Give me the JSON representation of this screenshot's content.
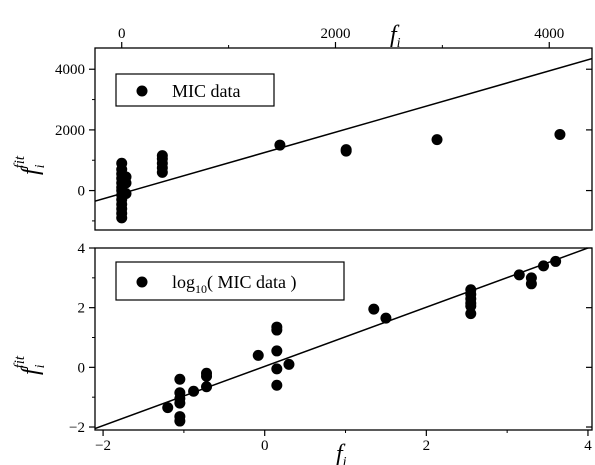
{
  "chart_data": [
    {
      "type": "scatter",
      "panel": "top",
      "xlabel": "f",
      "xlabel_sub": "i",
      "xaxis_position": "top",
      "ylabel": "f",
      "ylabel_sup": "fit",
      "ylabel_sub": "i",
      "xlim": [
        -250,
        4400
      ],
      "ylim": [
        -1300,
        4700
      ],
      "xticks": [
        0,
        2000,
        4000
      ],
      "yticks": [
        0,
        2000,
        4000
      ],
      "legend": {
        "label": "MIC data",
        "placement": "top-left"
      },
      "fit_line": {
        "x": [
          -250,
          4400
        ],
        "y": [
          -350,
          4350
        ]
      },
      "series": [
        {
          "name": "MIC data",
          "points": [
            [
              0,
              -900
            ],
            [
              0,
              -750
            ],
            [
              0,
              -600
            ],
            [
              0,
              -450
            ],
            [
              0,
              -300
            ],
            [
              0,
              -150
            ],
            [
              0,
              0
            ],
            [
              0,
              100
            ],
            [
              0,
              250
            ],
            [
              0,
              400
            ],
            [
              0,
              550
            ],
            [
              0,
              700
            ],
            [
              0,
              900
            ],
            [
              40,
              -100
            ],
            [
              40,
              250
            ],
            [
              40,
              450
            ],
            [
              380,
              600
            ],
            [
              380,
              750
            ],
            [
              380,
              900
            ],
            [
              380,
              1050
            ],
            [
              380,
              1150
            ],
            [
              1480,
              1500
            ],
            [
              2100,
              1300
            ],
            [
              2100,
              1350
            ],
            [
              2950,
              1680
            ],
            [
              4100,
              1850
            ]
          ]
        }
      ]
    },
    {
      "type": "scatter",
      "panel": "bottom",
      "xlabel": "f",
      "xlabel_sub": "i",
      "ylabel": "f",
      "ylabel_sup": "fit",
      "ylabel_sub": "i",
      "xlim": [
        -2.1,
        4.05
      ],
      "ylim": [
        -2.1,
        4.0
      ],
      "xticks": [
        -2,
        0,
        2,
        4
      ],
      "yticks": [
        -2,
        0,
        2,
        4
      ],
      "legend": {
        "label": "log",
        "label_sub": "10",
        "label_rest": "( MIC data )",
        "placement": "top-left"
      },
      "fit_line": {
        "x": [
          -2.1,
          4.05
        ],
        "y": [
          -2.05,
          4.05
        ]
      },
      "series": [
        {
          "name": "log10( MIC data )",
          "points": [
            [
              -1.2,
              -1.35
            ],
            [
              -1.05,
              -0.4
            ],
            [
              -1.05,
              -0.85
            ],
            [
              -1.05,
              -1.05
            ],
            [
              -1.05,
              -1.2
            ],
            [
              -1.05,
              -1.65
            ],
            [
              -1.05,
              -1.8
            ],
            [
              -0.88,
              -0.8
            ],
            [
              -0.72,
              -0.2
            ],
            [
              -0.72,
              -0.3
            ],
            [
              -0.72,
              -0.65
            ],
            [
              -0.08,
              0.4
            ],
            [
              0.15,
              1.25
            ],
            [
              0.15,
              1.35
            ],
            [
              0.15,
              0.55
            ],
            [
              0.15,
              -0.05
            ],
            [
              0.15,
              -0.6
            ],
            [
              0.3,
              0.1
            ],
            [
              1.35,
              1.95
            ],
            [
              1.5,
              1.65
            ],
            [
              2.55,
              2.6
            ],
            [
              2.55,
              2.45
            ],
            [
              2.55,
              2.3
            ],
            [
              2.55,
              2.15
            ],
            [
              2.55,
              2.05
            ],
            [
              2.55,
              1.8
            ],
            [
              3.15,
              3.1
            ],
            [
              3.3,
              3.0
            ],
            [
              3.3,
              2.8
            ],
            [
              3.45,
              3.4
            ],
            [
              3.6,
              3.55
            ]
          ]
        }
      ]
    }
  ]
}
